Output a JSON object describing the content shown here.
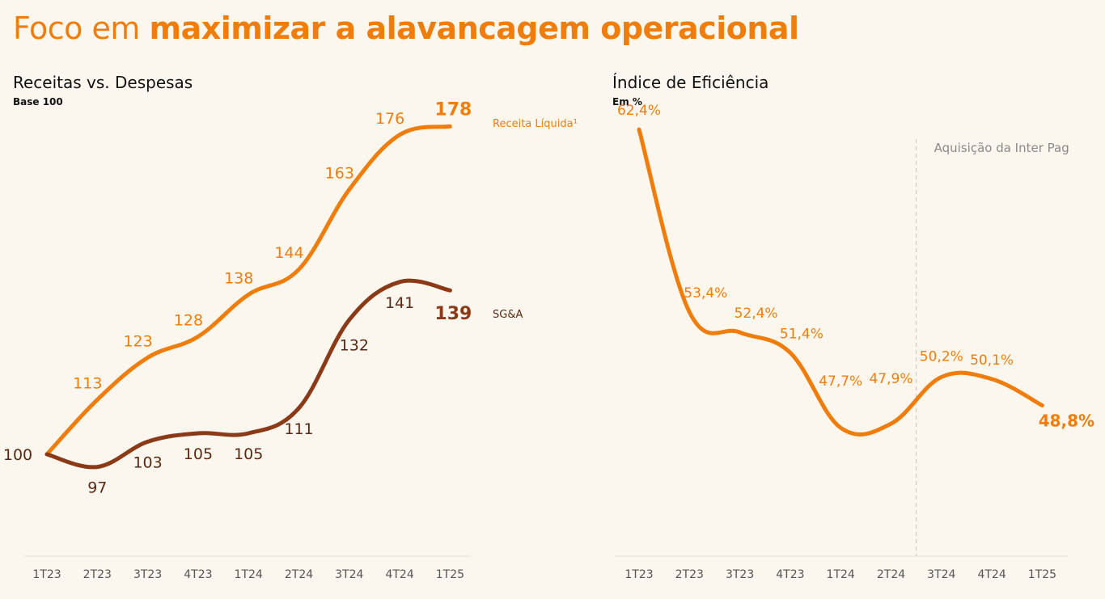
{
  "page_title": {
    "light": "Foco em",
    "bold": "maximizar a alavancagem operacional"
  },
  "colors": {
    "accent": "#f07d0a",
    "sga": "#8b3a17",
    "axis": "#555555",
    "annotation": "#8a8a8a",
    "background": "#fcf7ee"
  },
  "chart_data": [
    {
      "type": "line",
      "title": "Receitas vs. Despesas",
      "subtitle": "Base 100",
      "categories": [
        "1T23",
        "2T23",
        "3T23",
        "4T23",
        "1T24",
        "2T24",
        "3T24",
        "4T24",
        "1T25"
      ],
      "series": [
        {
          "name": "Receita Líquida¹",
          "values": [
            100,
            113,
            123,
            128,
            138,
            144,
            163,
            176,
            178
          ]
        },
        {
          "name": "SG&A",
          "values": [
            100,
            97,
            103,
            105,
            105,
            111,
            132,
            141,
            139
          ]
        }
      ],
      "ylim": [
        85,
        185
      ]
    },
    {
      "type": "line",
      "title": "Índice de Eficiência",
      "subtitle": "Em %",
      "categories": [
        "1T23",
        "2T23",
        "3T23",
        "4T23",
        "1T24",
        "2T24",
        "3T24",
        "4T24",
        "1T25"
      ],
      "series": [
        {
          "values": [
            62.4,
            53.4,
            52.4,
            51.4,
            47.7,
            47.9,
            50.2,
            50.1,
            48.8
          ],
          "labels": [
            "62,4%",
            "53,4%",
            "52,4%",
            "51,4%",
            "47,7%",
            "47,9%",
            "50,2%",
            "50,1%",
            "48,8%"
          ]
        }
      ],
      "annotation": {
        "text": "Aquisição da Inter Pag",
        "between": [
          "2T24",
          "3T24"
        ]
      },
      "ylim": [
        44,
        64
      ]
    }
  ]
}
